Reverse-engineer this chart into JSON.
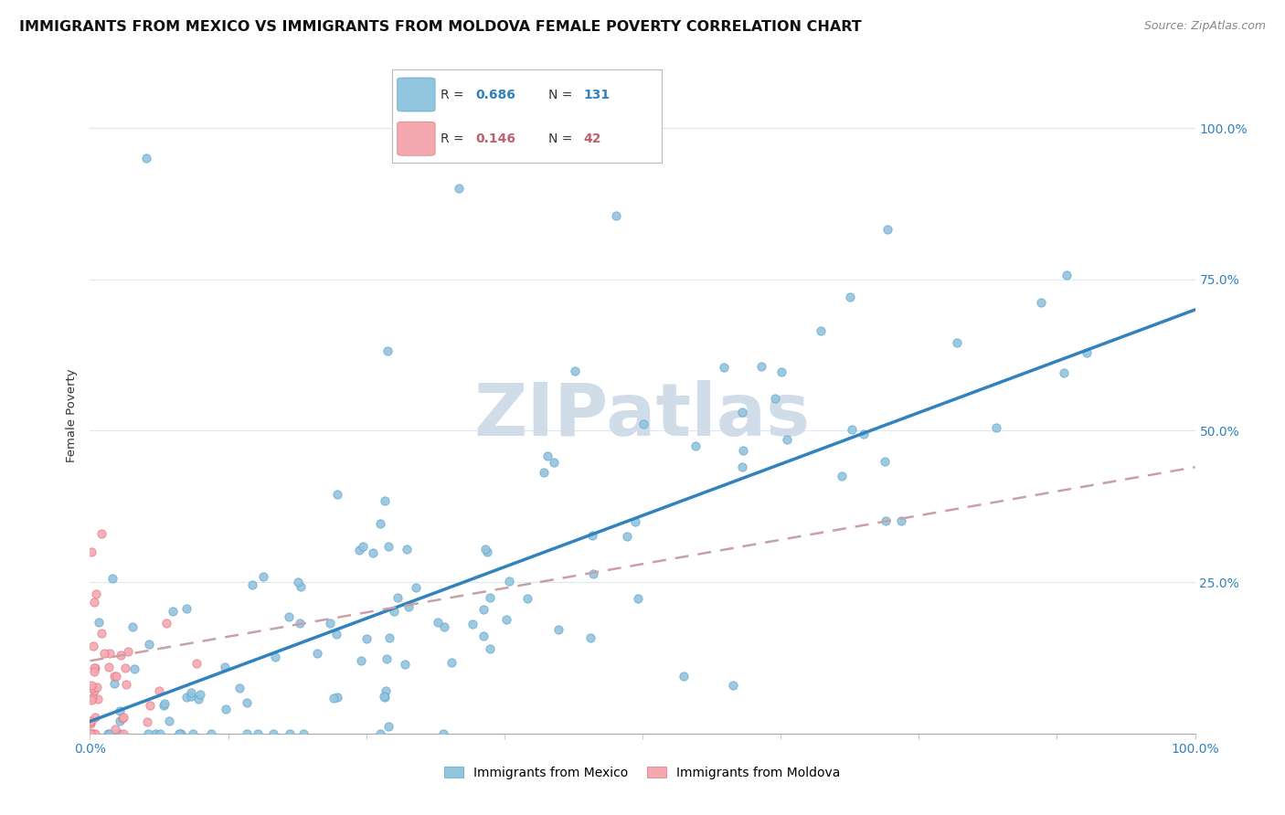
{
  "title": "IMMIGRANTS FROM MEXICO VS IMMIGRANTS FROM MOLDOVA FEMALE POVERTY CORRELATION CHART",
  "source": "Source: ZipAtlas.com",
  "ylabel": "Female Poverty",
  "mexico_R": 0.686,
  "mexico_N": 131,
  "moldova_R": 0.146,
  "moldova_N": 42,
  "mexico_color": "#92c5de",
  "moldova_color": "#f4a9b0",
  "mexico_line_color": "#3182bd",
  "moldova_line_color": "#c9a0a4",
  "mexico_marker_edge": "#5b9ec9",
  "moldova_marker_edge": "#e07080",
  "watermark_color": "#d0dce8",
  "legend_mexico": "Immigrants from Mexico",
  "legend_moldova": "Immigrants from Moldova",
  "background_color": "#ffffff",
  "grid_color": "#dde8f0",
  "title_fontsize": 11.5,
  "source_fontsize": 9,
  "axis_label_fontsize": 9.5,
  "tick_fontsize": 10,
  "legend_fontsize": 10,
  "mexico_line_intercept": 0.02,
  "mexico_line_slope": 0.68,
  "moldova_line_intercept": 0.12,
  "moldova_line_slope": 0.32
}
